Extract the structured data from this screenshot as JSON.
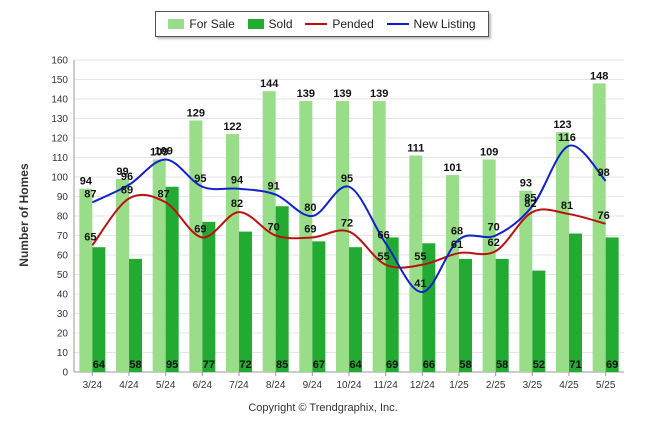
{
  "chart_data": {
    "type": "bar",
    "categories": [
      "3/24",
      "4/24",
      "5/24",
      "6/24",
      "7/24",
      "8/24",
      "9/24",
      "10/24",
      "11/24",
      "12/24",
      "1/25",
      "2/25",
      "3/25",
      "4/25",
      "5/25"
    ],
    "series": [
      {
        "name": "For Sale",
        "kind": "bar",
        "color": "#99dd88",
        "values": [
          94,
          99,
          109,
          129,
          122,
          144,
          139,
          139,
          139,
          111,
          101,
          109,
          93,
          123,
          148
        ]
      },
      {
        "name": "Sold",
        "kind": "bar",
        "color": "#22aa33",
        "values": [
          64,
          58,
          95,
          77,
          72,
          85,
          67,
          64,
          69,
          66,
          58,
          58,
          52,
          71,
          69
        ]
      },
      {
        "name": "Pended",
        "kind": "line",
        "color": "#bb1111",
        "values": [
          65,
          89,
          87,
          69,
          82,
          70,
          69,
          72,
          55,
          55,
          61,
          62,
          82,
          81,
          76
        ]
      },
      {
        "name": "New Listing",
        "kind": "line",
        "color": "#1122cc",
        "values": [
          87,
          96,
          109,
          95,
          94,
          91,
          80,
          95,
          66,
          41,
          68,
          70,
          85,
          116,
          98
        ]
      }
    ],
    "ylabel": "Number of Homes",
    "ylim": [
      0,
      160
    ],
    "yticks": [
      0,
      10,
      20,
      30,
      40,
      50,
      60,
      70,
      80,
      90,
      100,
      110,
      120,
      130,
      140,
      150,
      160
    ],
    "grid": true,
    "legend_position": "top-center"
  },
  "copyright": "Copyright © Trendgraphix, Inc."
}
